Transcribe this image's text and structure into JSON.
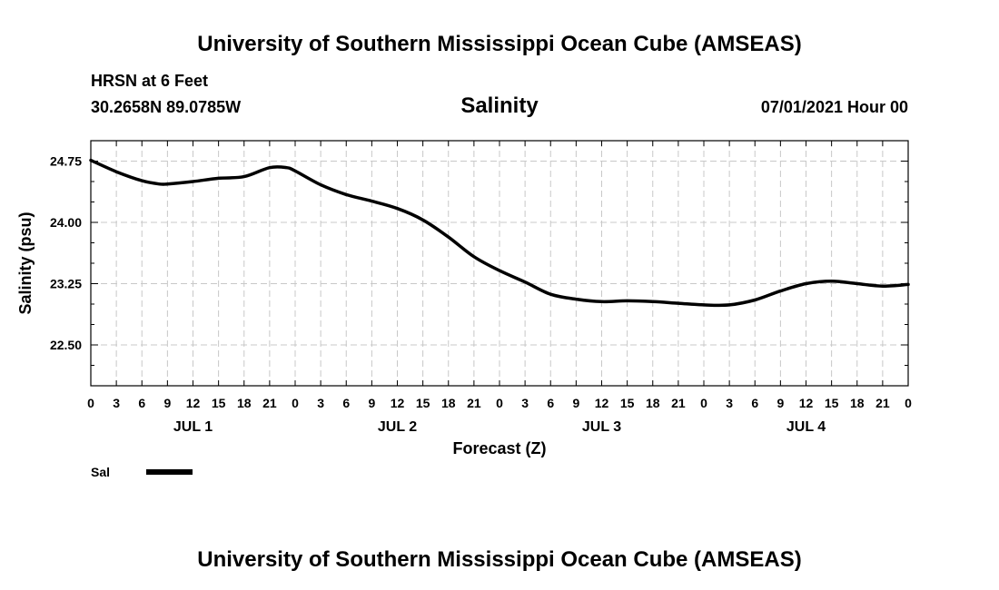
{
  "header": {
    "top_title": "University of Southern Mississippi Ocean Cube (AMSEAS)",
    "station": "HRSN at 6 Feet",
    "coordinates": "30.2658N  89.0785W",
    "variable": "Salinity",
    "datetime": "07/01/2021 Hour 00"
  },
  "footer": {
    "bottom_title": "University of Southern Mississippi Ocean Cube (AMSEAS)"
  },
  "legend": {
    "label": "Sal"
  },
  "chart_data": {
    "type": "line",
    "title": "Salinity",
    "xlabel": "Forecast (Z)",
    "ylabel": "Salinity (psu)",
    "xlim": [
      0,
      96
    ],
    "ylim": [
      22.0,
      25.0
    ],
    "yticks": [
      {
        "value": 24.75,
        "label": "24.75"
      },
      {
        "value": 24.0,
        "label": "24.00"
      },
      {
        "value": 23.25,
        "label": "23.25"
      },
      {
        "value": 22.5,
        "label": "22.50"
      }
    ],
    "xticks": [
      {
        "value": 0,
        "label": "0"
      },
      {
        "value": 3,
        "label": "3"
      },
      {
        "value": 6,
        "label": "6"
      },
      {
        "value": 9,
        "label": "9"
      },
      {
        "value": 12,
        "label": "12"
      },
      {
        "value": 15,
        "label": "15"
      },
      {
        "value": 18,
        "label": "18"
      },
      {
        "value": 21,
        "label": "21"
      },
      {
        "value": 24,
        "label": "0"
      },
      {
        "value": 27,
        "label": "3"
      },
      {
        "value": 30,
        "label": "6"
      },
      {
        "value": 33,
        "label": "9"
      },
      {
        "value": 36,
        "label": "12"
      },
      {
        "value": 39,
        "label": "15"
      },
      {
        "value": 42,
        "label": "18"
      },
      {
        "value": 45,
        "label": "21"
      },
      {
        "value": 48,
        "label": "0"
      },
      {
        "value": 51,
        "label": "3"
      },
      {
        "value": 54,
        "label": "6"
      },
      {
        "value": 57,
        "label": "9"
      },
      {
        "value": 60,
        "label": "12"
      },
      {
        "value": 63,
        "label": "15"
      },
      {
        "value": 66,
        "label": "18"
      },
      {
        "value": 69,
        "label": "21"
      },
      {
        "value": 72,
        "label": "0"
      },
      {
        "value": 75,
        "label": "3"
      },
      {
        "value": 78,
        "label": "6"
      },
      {
        "value": 81,
        "label": "9"
      },
      {
        "value": 84,
        "label": "12"
      },
      {
        "value": 87,
        "label": "15"
      },
      {
        "value": 90,
        "label": "18"
      },
      {
        "value": 93,
        "label": "21"
      },
      {
        "value": 96,
        "label": "0"
      }
    ],
    "day_labels": [
      {
        "center": 12,
        "label": "JUL 1"
      },
      {
        "center": 36,
        "label": "JUL 2"
      },
      {
        "center": 60,
        "label": "JUL 3"
      },
      {
        "center": 84,
        "label": "JUL 4"
      }
    ],
    "grid": true,
    "series": [
      {
        "name": "Sal",
        "x": [
          0,
          3,
          6,
          8,
          9,
          12,
          15,
          18,
          21,
          23,
          24,
          27,
          30,
          33,
          36,
          39,
          42,
          45,
          48,
          51,
          54,
          57,
          60,
          63,
          66,
          69,
          72,
          75,
          78,
          81,
          84,
          87,
          90,
          93,
          96
        ],
        "y": [
          24.76,
          24.62,
          24.51,
          24.47,
          24.47,
          24.5,
          24.54,
          24.56,
          24.67,
          24.67,
          24.63,
          24.46,
          24.34,
          24.26,
          24.17,
          24.03,
          23.82,
          23.58,
          23.41,
          23.27,
          23.12,
          23.06,
          23.03,
          23.04,
          23.03,
          23.01,
          22.99,
          22.99,
          23.05,
          23.16,
          23.25,
          23.28,
          23.25,
          23.22,
          23.24
        ]
      }
    ]
  }
}
